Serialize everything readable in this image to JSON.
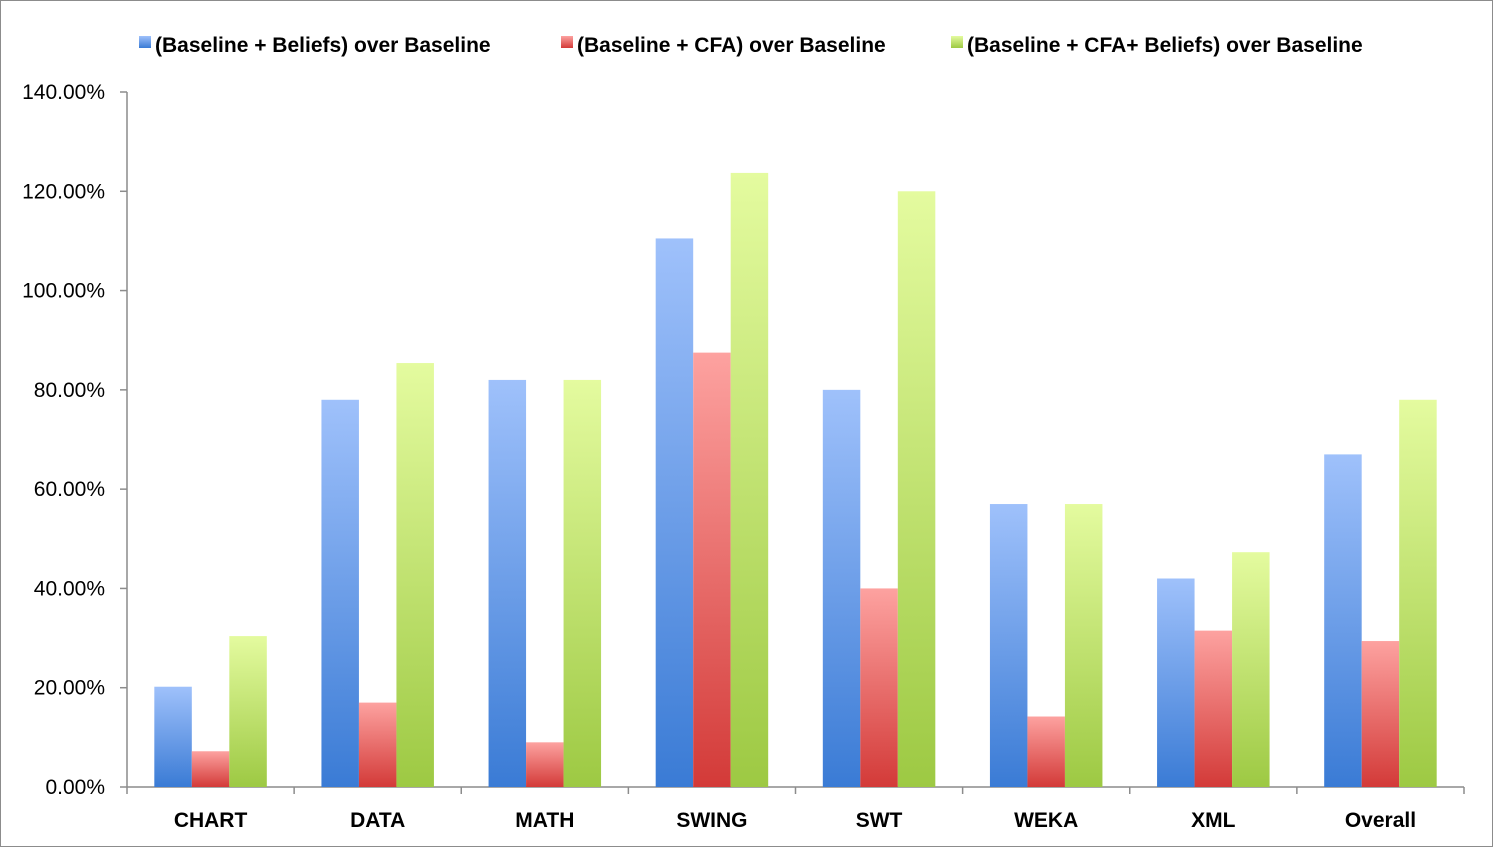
{
  "chart_data": {
    "type": "bar",
    "title": "",
    "xlabel": "",
    "ylabel": "",
    "categories": [
      "CHART",
      "DATA",
      "MATH",
      "SWING",
      "SWT",
      "WEKA",
      "XML",
      "Overall"
    ],
    "series": [
      {
        "name": "(Baseline + Beliefs) over Baseline",
        "values": [
          20.2,
          78.0,
          82.0,
          110.5,
          80.0,
          57.0,
          42.0,
          67.0
        ],
        "color_top": "#9fc1fb",
        "color_bottom": "#3a7bd5"
      },
      {
        "name": "(Baseline + CFA) over Baseline",
        "values": [
          7.2,
          17.0,
          9.0,
          87.5,
          40.0,
          14.2,
          31.5,
          29.4
        ],
        "color_top": "#fda2a0",
        "color_bottom": "#d33a38"
      },
      {
        "name": "(Baseline + CFA+ Beliefs) over Baseline",
        "values": [
          30.4,
          85.4,
          82.0,
          123.7,
          120.0,
          57.0,
          47.3,
          78.0
        ],
        "color_top": "#e4fb9f",
        "color_bottom": "#9dc943"
      }
    ],
    "y_ticks": [
      0,
      20,
      40,
      60,
      80,
      100,
      120,
      140
    ],
    "y_tick_labels": [
      "0.00%",
      "20.00%",
      "40.00%",
      "60.00%",
      "80.00%",
      "100.00%",
      "120.00%",
      "140.00%"
    ],
    "ylim": [
      0,
      140
    ],
    "grid": false,
    "legend_position": "top"
  }
}
